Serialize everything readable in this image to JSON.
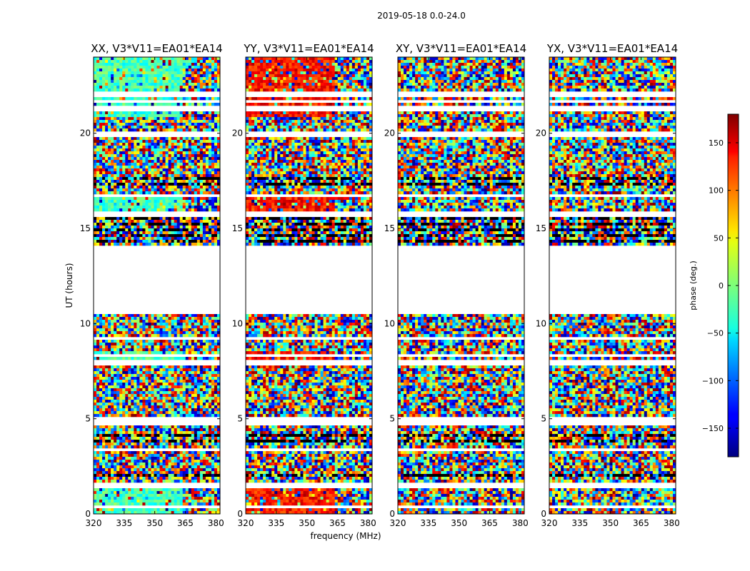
{
  "chart_data": {
    "type": "heatmap",
    "suptitle": "2019-05-18 0.0-24.0",
    "xlabel": "frequency (MHz)",
    "ylabel": "UT (hours)",
    "xlim": [
      320,
      382
    ],
    "ylim": [
      0,
      24
    ],
    "xticks": [
      "320",
      "335",
      "350",
      "365",
      "380"
    ],
    "yticks": [
      "0",
      "5",
      "10",
      "15",
      "20"
    ],
    "colorbar": {
      "label": "phase (deg.)",
      "range": [
        -180,
        180
      ],
      "ticks": [
        "150",
        "100",
        "50",
        "0",
        "−50",
        "−100",
        "−150"
      ],
      "colormap": "jet"
    },
    "gaps_hours": [
      [
        10.55,
        14.1
      ]
    ],
    "panels": [
      {
        "title": "XX, V3*V11=EA01*EA14",
        "coherent_phase_deg": -20
      },
      {
        "title": "YY, V3*V11=EA01*EA14",
        "coherent_phase_deg": 130
      },
      {
        "title": "XY, V3*V11=EA01*EA14",
        "coherent_phase_deg": null
      },
      {
        "title": "YX, V3*V11=EA01*EA14",
        "coherent_phase_deg": null
      }
    ]
  }
}
